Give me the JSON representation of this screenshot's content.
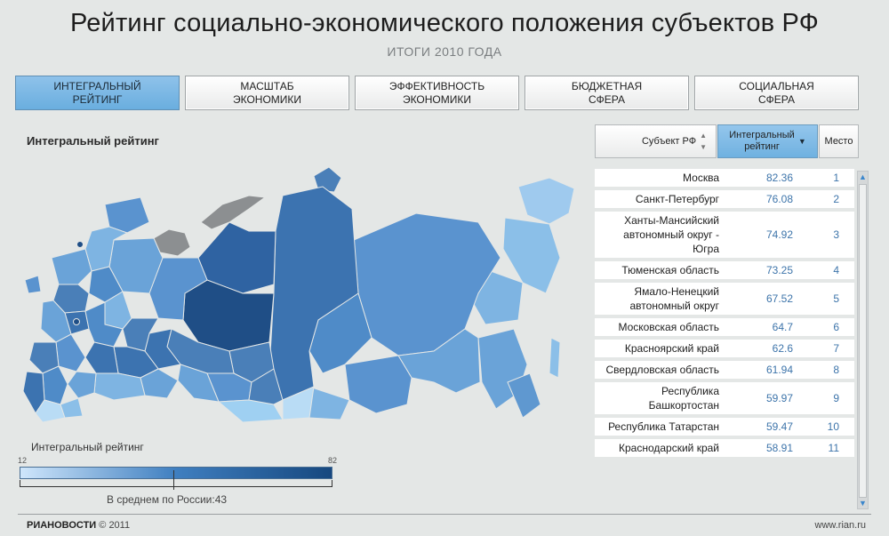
{
  "title": "Рейтинг социально-экономического положения субъектов РФ",
  "subtitle": "ИТОГИ 2010 ГОДА",
  "tabs": [
    {
      "line1": "ИНТЕГРАЛЬНЫЙ",
      "line2": "РЕЙТИНГ",
      "active": true
    },
    {
      "line1": "МАСШТАБ",
      "line2": "ЭКОНОМИКИ",
      "active": false
    },
    {
      "line1": "ЭФФЕКТИВНОСТЬ",
      "line2": "ЭКОНОМИКИ",
      "active": false
    },
    {
      "line1": "БЮДЖЕТНАЯ",
      "line2": "СФЕРА",
      "active": false
    },
    {
      "line1": "СОЦИАЛЬНАЯ",
      "line2": "СФЕРА",
      "active": false
    }
  ],
  "section_title": "Интегральный рейтинг",
  "sort": {
    "subject": "Субъект РФ",
    "rating_line1": "Интегральный",
    "rating_line2": "рейтинг",
    "place": "Место",
    "sort_icon": "sort-arrows-icon",
    "sort_active_icon": "sort-down-icon"
  },
  "table": {
    "rows": [
      {
        "name": "Москва",
        "value": "82.36",
        "rank": "1"
      },
      {
        "name": "Санкт-Петербург",
        "value": "76.08",
        "rank": "2"
      },
      {
        "name": "Ханты-Мансийский автономный округ - Югра",
        "value": "74.92",
        "rank": "3"
      },
      {
        "name": "Тюменская область",
        "value": "73.25",
        "rank": "4"
      },
      {
        "name": "Ямало-Ненецкий автономный округ",
        "value": "67.52",
        "rank": "5"
      },
      {
        "name": "Московская область",
        "value": "64.7",
        "rank": "6"
      },
      {
        "name": "Красноярский край",
        "value": "62.6",
        "rank": "7"
      },
      {
        "name": "Свердловская область",
        "value": "61.94",
        "rank": "8"
      },
      {
        "name": "Республика Башкортостан",
        "value": "59.97",
        "rank": "9"
      },
      {
        "name": "Республика Татарстан",
        "value": "59.47",
        "rank": "10"
      },
      {
        "name": "Краснодарский край",
        "value": "58.91",
        "rank": "11"
      }
    ]
  },
  "legend": {
    "title": "Интегральный рейтинг",
    "min": "12",
    "max": "82",
    "average": "В среднем по России:43",
    "average_value": 43
  },
  "colors": {
    "accent": "#6aaedf",
    "value_text": "#3d74aa",
    "map_dark": "#1f4e86",
    "map_light": "#b9dcf5",
    "map_gray": "#8c8f91"
  },
  "footer": {
    "logo": "РИАНОВОСТИ",
    "copyright": "© 2011",
    "site": "www.rian.ru"
  }
}
